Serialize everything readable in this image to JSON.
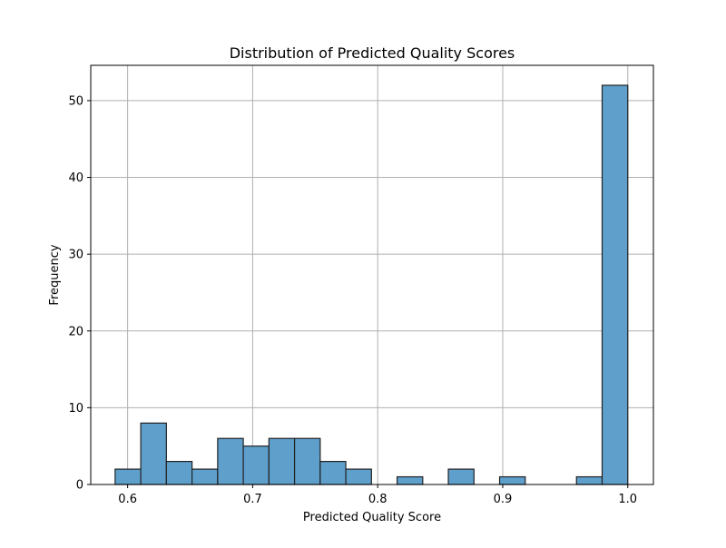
{
  "chart_data": {
    "type": "bar",
    "title": "Distribution of Predicted Quality Scores",
    "xlabel": "Predicted Quality Score",
    "ylabel": "Frequency",
    "xlim": [
      0.5705,
      1.0205
    ],
    "ylim": [
      0,
      54.6
    ],
    "x_ticks": [
      0.6,
      0.7,
      0.8,
      0.9,
      1.0
    ],
    "x_tick_labels": [
      "0.6",
      "0.7",
      "0.8",
      "0.9",
      "1.0"
    ],
    "y_ticks": [
      0,
      10,
      20,
      30,
      40,
      50
    ],
    "y_tick_labels": [
      "0",
      "10",
      "20",
      "30",
      "40",
      "50"
    ],
    "grid": true,
    "bar_color": "#5f9fcc",
    "edge_color": "#222222",
    "bins": [
      {
        "start": 0.59,
        "end": 0.6105,
        "count": 2
      },
      {
        "start": 0.6105,
        "end": 0.631,
        "count": 8
      },
      {
        "start": 0.631,
        "end": 0.6515,
        "count": 3
      },
      {
        "start": 0.6515,
        "end": 0.672,
        "count": 2
      },
      {
        "start": 0.672,
        "end": 0.6925,
        "count": 6
      },
      {
        "start": 0.6925,
        "end": 0.713,
        "count": 5
      },
      {
        "start": 0.713,
        "end": 0.7335,
        "count": 6
      },
      {
        "start": 0.7335,
        "end": 0.754,
        "count": 6
      },
      {
        "start": 0.754,
        "end": 0.7745,
        "count": 3
      },
      {
        "start": 0.7745,
        "end": 0.795,
        "count": 2
      },
      {
        "start": 0.795,
        "end": 0.8155,
        "count": 0
      },
      {
        "start": 0.8155,
        "end": 0.836,
        "count": 1
      },
      {
        "start": 0.836,
        "end": 0.8565,
        "count": 0
      },
      {
        "start": 0.8565,
        "end": 0.877,
        "count": 2
      },
      {
        "start": 0.877,
        "end": 0.8975,
        "count": 0
      },
      {
        "start": 0.8975,
        "end": 0.918,
        "count": 1
      },
      {
        "start": 0.918,
        "end": 0.9385,
        "count": 0
      },
      {
        "start": 0.9385,
        "end": 0.959,
        "count": 0
      },
      {
        "start": 0.959,
        "end": 0.9795,
        "count": 1
      },
      {
        "start": 0.9795,
        "end": 1.0,
        "count": 52
      }
    ]
  }
}
